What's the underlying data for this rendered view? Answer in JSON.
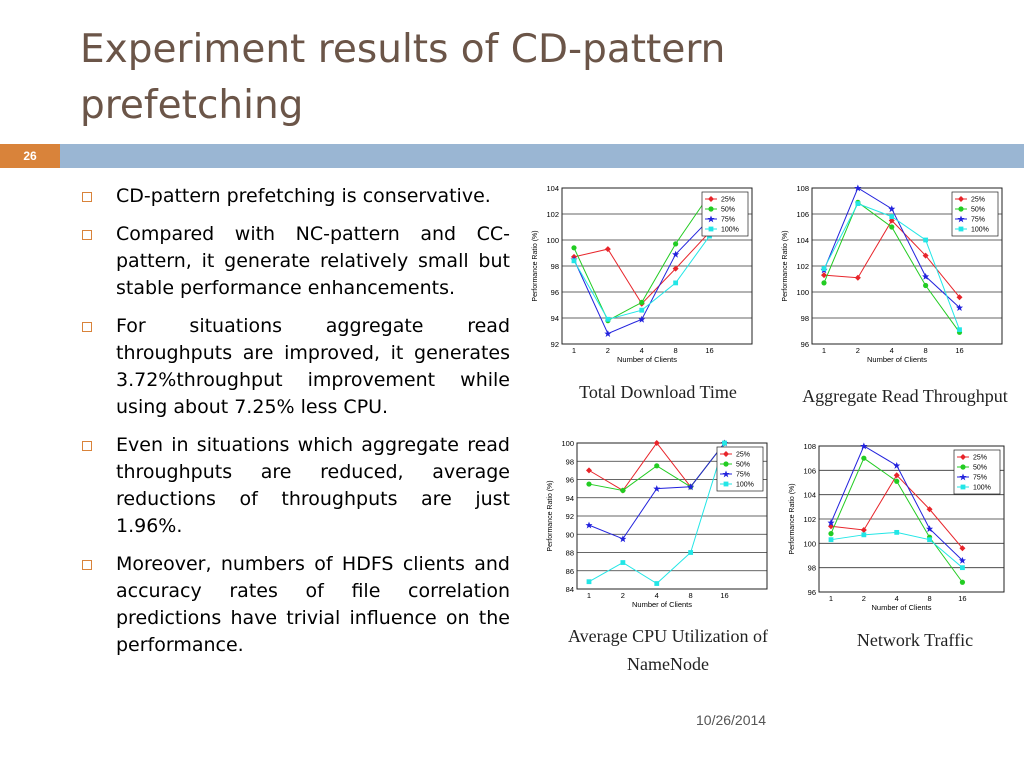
{
  "slide": {
    "title": "Experiment results of CD-pattern prefetching",
    "slide_number": "26",
    "date": "10/26/2014"
  },
  "bullets": [
    "CD-pattern prefetching is conservative.",
    "Compared with NC-pattern and CC-pattern, it generate relatively small but stable performance enhancements.",
    "For situations aggregate read throughputs are improved, it generates 3.72%throughput improvement while using about 7.25% less CPU.",
    "Even in situations which aggregate read throughputs are reduced, average reductions of throughputs are just 1.96%.",
    "Moreover, numbers of HDFS clients and accuracy rates of file correlation predictions have trivial influence on the performance."
  ],
  "colors": {
    "title": "#6b5548",
    "accent": "#d9833a",
    "band": "#9ab6d3",
    "series": [
      "#e8242a",
      "#22cc22",
      "#2222dd",
      "#22e6e6"
    ]
  },
  "chart_data": [
    {
      "type": "line",
      "caption": "Total Download Time",
      "xlabel": "Number of Clients",
      "ylabel": "Performance Ratio (%)",
      "categories": [
        "1",
        "2",
        "4",
        "8",
        "16"
      ],
      "yticks": [
        92,
        94,
        96,
        98,
        100,
        102,
        104
      ],
      "ylim": [
        92,
        104
      ],
      "grid": true,
      "legend": "top-right",
      "series": [
        {
          "name": "25%",
          "values": [
            98.7,
            99.3,
            95.1,
            97.8,
            100.6
          ]
        },
        {
          "name": "50%",
          "values": [
            99.4,
            93.8,
            95.2,
            99.7,
            103.5
          ]
        },
        {
          "name": "75%",
          "values": [
            98.5,
            92.8,
            93.9,
            98.9,
            101.6
          ]
        },
        {
          "name": "100%",
          "values": [
            98.4,
            93.9,
            94.6,
            96.7,
            100.3
          ]
        }
      ]
    },
    {
      "type": "line",
      "caption": "Aggregate Read Throughput",
      "xlabel": "Number of Clients",
      "ylabel": "Performance Ratio (%)",
      "categories": [
        "1",
        "2",
        "4",
        "8",
        "16"
      ],
      "yticks": [
        96,
        98,
        100,
        102,
        104,
        106,
        108
      ],
      "ylim": [
        96,
        108
      ],
      "grid": true,
      "legend": "top-right",
      "series": [
        {
          "name": "25%",
          "values": [
            101.3,
            101.1,
            105.5,
            102.8,
            99.6
          ]
        },
        {
          "name": "50%",
          "values": [
            100.7,
            106.9,
            105.0,
            100.5,
            96.9
          ]
        },
        {
          "name": "75%",
          "values": [
            101.7,
            108.0,
            106.4,
            101.2,
            98.8
          ]
        },
        {
          "name": "100%",
          "values": [
            101.8,
            106.8,
            105.8,
            104.0,
            97.1
          ]
        }
      ]
    },
    {
      "type": "line",
      "caption": "Average CPU Utilization of NameNode",
      "xlabel": "Number of Clients",
      "ylabel": "Performance Ratio (%)",
      "categories": [
        "1",
        "2",
        "4",
        "8",
        "16"
      ],
      "yticks": [
        84,
        86,
        88,
        90,
        92,
        94,
        96,
        98,
        100
      ],
      "ylim": [
        84,
        100
      ],
      "grid": true,
      "legend": "top-right",
      "series": [
        {
          "name": "25%",
          "values": [
            97.0,
            94.8,
            100.0,
            95.2,
            100.0
          ]
        },
        {
          "name": "50%",
          "values": [
            95.5,
            94.8,
            97.5,
            95.2,
            100.0
          ]
        },
        {
          "name": "75%",
          "values": [
            91.0,
            89.5,
            95.0,
            95.2,
            100.0
          ]
        },
        {
          "name": "100%",
          "values": [
            84.8,
            86.9,
            84.6,
            88.0,
            100.0
          ]
        }
      ]
    },
    {
      "type": "line",
      "caption": "Network Traffic",
      "xlabel": "Number of Clients",
      "ylabel": "Performance Ratio (%)",
      "categories": [
        "1",
        "2",
        "4",
        "8",
        "16"
      ],
      "yticks": [
        96,
        98,
        100,
        102,
        104,
        106,
        108
      ],
      "ylim": [
        96,
        108
      ],
      "grid": true,
      "legend": "top-right",
      "series": [
        {
          "name": "25%",
          "values": [
            101.4,
            101.1,
            105.6,
            102.8,
            99.6
          ]
        },
        {
          "name": "50%",
          "values": [
            100.8,
            107.0,
            105.1,
            100.5,
            96.8
          ]
        },
        {
          "name": "75%",
          "values": [
            101.7,
            108.0,
            106.4,
            101.2,
            98.6
          ]
        },
        {
          "name": "100%",
          "values": [
            100.3,
            100.7,
            100.9,
            100.3,
            98.0
          ]
        }
      ]
    }
  ]
}
